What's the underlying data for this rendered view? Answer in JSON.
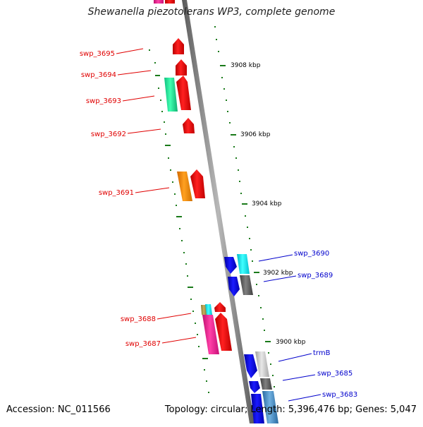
{
  "title": "Shewanella piezotolerans WP3, complete genome",
  "accession_text": "Accession: NC_011566",
  "summary_text": "Topology: circular; Length: 5,396,476 bp; Genes: 5,047",
  "colors": {
    "left_label": "#e00000",
    "right_label": "#0000cc",
    "tick": "#1a7a1a",
    "backbone": "#808080"
  },
  "scale_labels": [
    "3908 kbp",
    "3906 kbp",
    "3904 kbp",
    "3902 kbp",
    "3900 kbp"
  ],
  "left_genes": [
    "swp_3695",
    "swp_3694",
    "swp_3693",
    "swp_3692",
    "swp_3691",
    "swp_3688",
    "swp_3687"
  ],
  "right_genes": [
    "swp_3690",
    "swp_3689",
    "trmB",
    "swp_3685",
    "swp_3683"
  ]
}
